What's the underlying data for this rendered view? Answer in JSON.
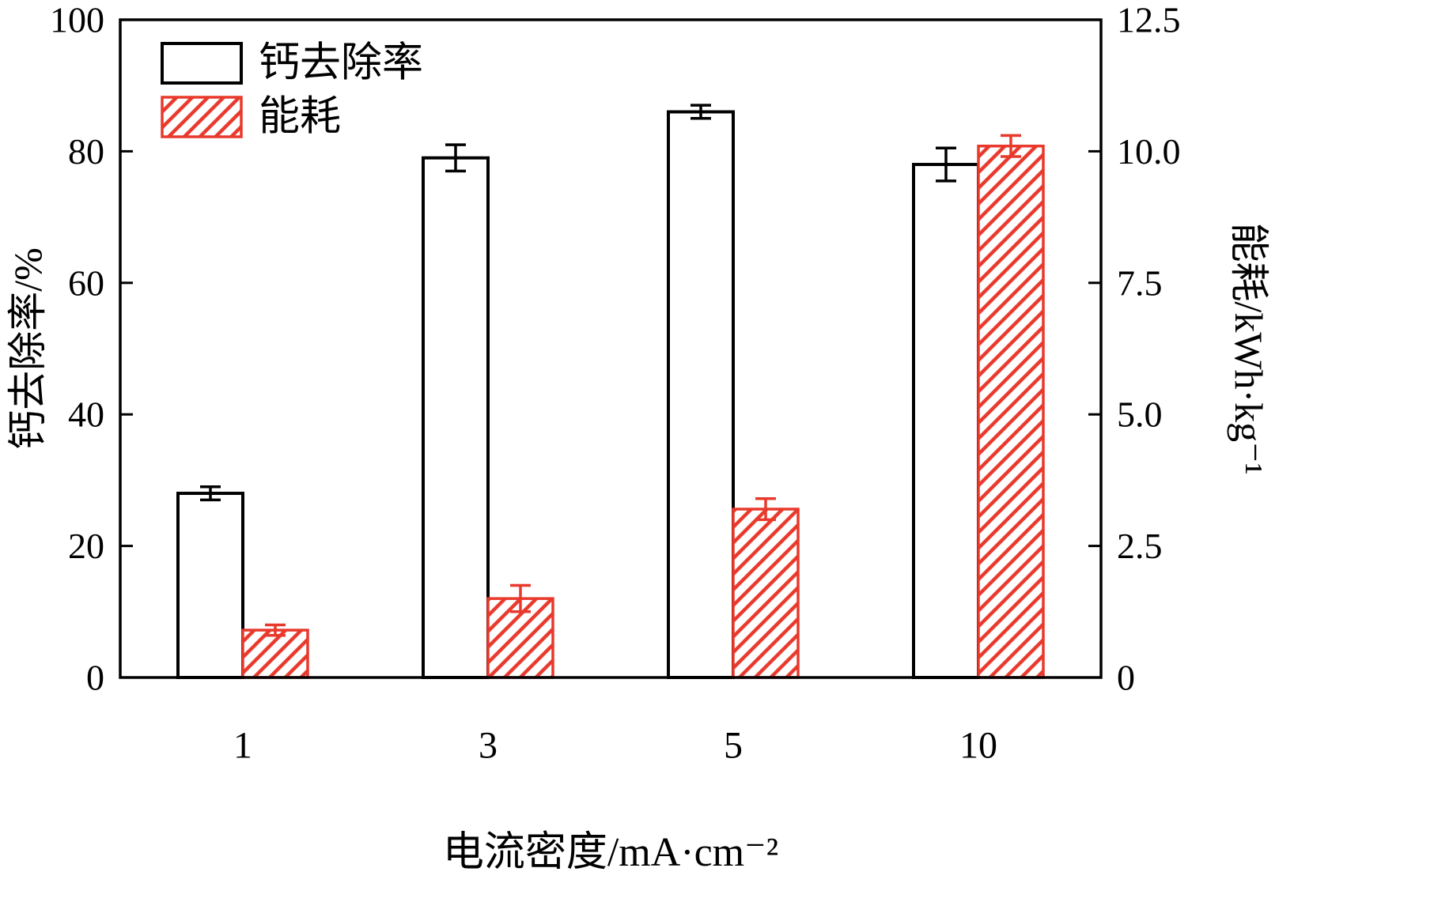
{
  "chart_data": {
    "type": "bar",
    "title": "",
    "categories": [
      "1",
      "3",
      "5",
      "10"
    ],
    "series": [
      {
        "name": "钙去除率",
        "axis": "left",
        "style": "white-black-outline",
        "values": [
          28,
          79,
          86,
          78
        ],
        "errors": [
          1.0,
          2.0,
          1.0,
          2.5
        ]
      },
      {
        "name": "能耗",
        "axis": "right",
        "style": "red-hatched",
        "values": [
          0.9,
          1.5,
          3.2,
          10.1
        ],
        "errors": [
          0.1,
          0.25,
          0.2,
          0.2
        ]
      }
    ],
    "xlabel": "电流密度/mA·cm⁻²",
    "ylabel_left": "钙去除率/%",
    "ylabel_right": "能耗/kWh·kg⁻¹",
    "ylim_left": [
      0,
      100
    ],
    "ylim_right": [
      0,
      12.5
    ],
    "yticks_left": {
      "values": [
        0,
        20,
        40,
        60,
        80,
        100
      ],
      "labels": [
        "0",
        "20",
        "40",
        "60",
        "80",
        "100"
      ]
    },
    "yticks_right": {
      "values": [
        0,
        2.5,
        5,
        7.5,
        10,
        12.5
      ],
      "labels": [
        "0",
        "2.5",
        "5.0",
        "7.5",
        "10.0",
        "12.5"
      ]
    },
    "legend": {
      "position": "upper-left",
      "entries": [
        "钙去除率",
        "能耗"
      ]
    },
    "grid": false,
    "colors": {
      "axis": "#000000",
      "bar_outline": "#000000",
      "bar_fill": "#ffffff",
      "hatch_red": "#e8392c",
      "background": "#ffffff"
    }
  }
}
